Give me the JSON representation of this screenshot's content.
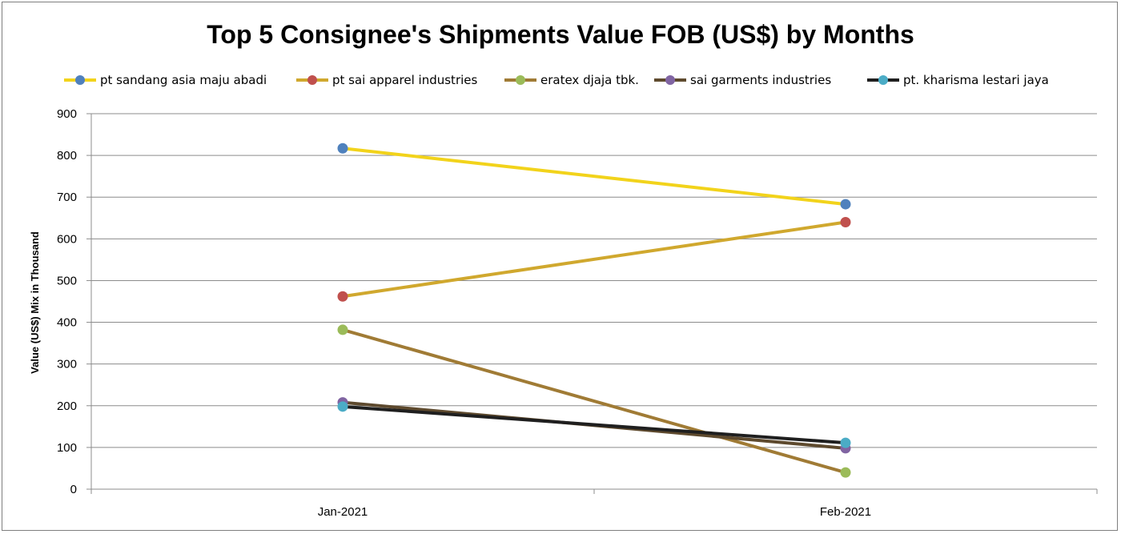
{
  "chart_data": {
    "type": "line",
    "title": "Top 5 Consignee's Shipments Value FOB (US$) by Months",
    "xlabel": "",
    "ylabel": "Value (US$) Mix in Thousand",
    "categories": [
      "Jan-2021",
      "Feb-2021"
    ],
    "ylim": [
      0,
      900
    ],
    "yticks": [
      0,
      100,
      200,
      300,
      400,
      500,
      600,
      700,
      800,
      900
    ],
    "grid": true,
    "legend_position": "top",
    "series": [
      {
        "name": "pt sandang asia maju abadi",
        "values": [
          817,
          683
        ],
        "line_color": "#f2d31b",
        "marker_color": "#4f81bd"
      },
      {
        "name": "pt sai apparel industries",
        "values": [
          462,
          640
        ],
        "line_color": "#d0a82e",
        "marker_color": "#c0504d"
      },
      {
        "name": "eratex djaja tbk.",
        "values": [
          382,
          40
        ],
        "line_color": "#a07b35",
        "marker_color": "#9bbb59"
      },
      {
        "name": "sai garments industries",
        "values": [
          208,
          98
        ],
        "line_color": "#5e4a2e",
        "marker_color": "#8064a2"
      },
      {
        "name": "pt. kharisma lestari jaya",
        "values": [
          198,
          111
        ],
        "line_color": "#1f1f1f",
        "marker_color": "#4bacc6"
      }
    ]
  }
}
